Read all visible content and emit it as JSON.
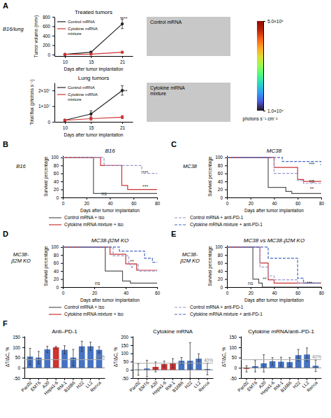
{
  "chart_data": [
    {
      "type": "line",
      "title": "Treated tumors",
      "subtitle": "B16/lung",
      "annotations": [
        {
          "text": "A"
        },
        {
          "text": "****",
          "x": 22,
          "y": 720
        }
      ],
      "xlabel": "Days after tumor implantation",
      "ylabel": "Tumor volume (mm³)",
      "x": [
        10,
        15,
        21
      ],
      "xlim": [
        8,
        23
      ],
      "xticks": [
        10,
        15,
        21
      ],
      "ylim": [
        -30,
        800
      ],
      "yticks": [
        0,
        200,
        400,
        600,
        800
      ],
      "marker": "circle",
      "legend": "upper left",
      "series": [
        {
          "name": "Control mRNA",
          "color": "#222222",
          "values": [
            5,
            50,
            650
          ],
          "errors": [
            2,
            20,
            100
          ]
        },
        {
          "name": "Cytokine mRNA\nmixture",
          "color": "#cc3333",
          "values": [
            5,
            10,
            50
          ],
          "errors": [
            2,
            4,
            20
          ]
        }
      ]
    },
    {
      "type": "line",
      "title": "Lung tumors",
      "annotations": [
        {
          "text": "***",
          "x": 22,
          "y": 18500000
        }
      ],
      "xlabel": "Days after tumor implantation",
      "ylabel": "Total flux (photons s⁻¹)",
      "x": [
        10,
        15,
        21
      ],
      "xlim": [
        8,
        23
      ],
      "xticks": [
        10,
        15,
        21
      ],
      "ylim": [
        0,
        25000000
      ],
      "yticks": [
        0,
        {
          "value": 10000000,
          "label": "1×10⁷"
        },
        {
          "value": 20000000,
          "label": "2×10⁷"
        }
      ],
      "marker": "circle",
      "legend": "upper left",
      "series": [
        {
          "name": "Control mRNA",
          "color": "#222222",
          "values": [
            1000000,
            5000000,
            20000000
          ],
          "errors": [
            500000,
            2000000,
            3000000
          ]
        },
        {
          "name": "Cytokine mRNA\nmixture",
          "color": "#cc3333",
          "values": [
            1000000,
            2000000,
            3000000
          ],
          "errors": [
            500000,
            1000000,
            1000000
          ]
        }
      ]
    },
    {
      "type": "image",
      "title": "Control mRNA"
    },
    {
      "type": "image",
      "title": "Cytokine mRNA\nmixture"
    },
    {
      "type": "colorbar",
      "log": true,
      "ylabel": "photons s⁻¹ cm⁻²",
      "ylim": [
        10000,
        500000
      ],
      "yticks": [
        {
          "value": 10000,
          "label": "1.0×10⁴"
        },
        {
          "value": 500000,
          "label": "5.0×10⁵"
        }
      ]
    },
    {
      "type": "step",
      "title": "B16",
      "subtitle": "B16",
      "annotations": [
        {
          "text": "B"
        },
        {
          "text": "***",
          "x": 70,
          "y": 58
        },
        {
          "text": "***",
          "x": 70,
          "y": 23
        },
        {
          "text": "ns",
          "x": 35,
          "y": 5
        }
      ],
      "xlabel": "Days after tumor implantation",
      "ylabel": "Survival percentage",
      "xlim": [
        0,
        80
      ],
      "xticks": [
        0,
        20,
        40,
        60,
        80
      ],
      "ylim": [
        0,
        105
      ],
      "yticks": [
        0,
        20,
        40,
        60,
        80,
        100
      ],
      "series": [
        {
          "color": "#555555",
          "line_style": "solid",
          "x": [
            0,
            25,
            26,
            80
          ],
          "values": [
            100,
            100,
            10,
            10
          ]
        },
        {
          "color": "#cc3333",
          "line_style": "solid",
          "x": [
            0,
            27,
            32,
            50,
            55,
            80
          ],
          "values": [
            100,
            100,
            80,
            30,
            20,
            20
          ]
        },
        {
          "color": "#9999cc",
          "line_style": "dashed",
          "x": [
            0,
            30,
            35,
            62,
            67,
            80
          ],
          "values": [
            100,
            100,
            80,
            80,
            60,
            60
          ]
        }
      ]
    },
    {
      "type": "step",
      "title": "MC38",
      "subtitle": "MC38",
      "annotations": [
        {
          "text": "C"
        },
        {
          "text": "***",
          "x": 72,
          "y": 78
        },
        {
          "text": "ns",
          "x": 72,
          "y": 36
        },
        {
          "text": "**",
          "x": 72,
          "y": 18
        }
      ],
      "xlabel": "Days after tumor implantation",
      "ylabel": "Survival percentage",
      "xlim": [
        0,
        80
      ],
      "xticks": [
        0,
        20,
        40,
        60,
        80
      ],
      "ylim": [
        0,
        105
      ],
      "yticks": [
        0,
        20,
        40,
        60,
        80,
        100
      ],
      "series": [
        {
          "color": "#555555",
          "line_style": "solid",
          "x": [
            0,
            30,
            35,
            50,
            55,
            80
          ],
          "values": [
            100,
            100,
            25,
            15,
            10,
            10
          ]
        },
        {
          "color": "#cc3333",
          "line_style": "solid",
          "x": [
            0,
            35,
            40,
            60,
            65,
            80
          ],
          "values": [
            100,
            100,
            75,
            45,
            40,
            40
          ]
        },
        {
          "color": "#9999cc",
          "line_style": "dashed",
          "x": [
            0,
            35,
            40,
            60,
            65,
            80
          ],
          "values": [
            100,
            100,
            60,
            42,
            35,
            35
          ]
        },
        {
          "color": "#4466bb",
          "line_style": "dashed",
          "x": [
            0,
            42,
            47,
            75,
            80
          ],
          "values": [
            100,
            100,
            90,
            90,
            80
          ]
        }
      ]
    },
    {
      "type": "legend",
      "series": [
        {
          "name": "Control mRNA + iso",
          "color": "#555555",
          "line_style": "solid"
        },
        {
          "name": "Cytokine mRNA mixture + iso",
          "color": "#cc3333",
          "line_style": "solid"
        },
        {
          "name": "Control mRNA + anti-PD-1",
          "color": "#9999cc",
          "line_style": "dashed"
        },
        {
          "name": "Cytokine mRNA mixture + anti-PD-1",
          "color": "#4466bb",
          "line_style": "dashed"
        }
      ]
    },
    {
      "type": "step",
      "title": "MC38-β2M KO",
      "subtitle": "MC38-\nβ2M KO",
      "annotations": [
        {
          "text": "D"
        },
        {
          "text": "**",
          "x": 44,
          "y": 60
        },
        {
          "text": "*",
          "x": 44,
          "y": 43
        },
        {
          "text": "ns",
          "x": 22,
          "y": 5
        }
      ],
      "xlabel": "Days after tumor implantation",
      "ylabel": "Survival percentage",
      "xlim": [
        0,
        60
      ],
      "xticks": [
        0,
        20,
        40,
        60
      ],
      "ylim": [
        0,
        105
      ],
      "yticks": [
        0,
        20,
        40,
        60,
        80,
        100
      ],
      "series": [
        {
          "color": "#555555",
          "line_style": "solid",
          "x": [
            0,
            22,
            27,
            38,
            43,
            60
          ],
          "values": [
            100,
            100,
            40,
            15,
            10,
            10
          ]
        },
        {
          "color": "#cc3333",
          "line_style": "solid",
          "x": [
            0,
            24,
            30,
            40,
            47,
            60
          ],
          "values": [
            100,
            100,
            82,
            58,
            42,
            42
          ]
        },
        {
          "color": "#9999cc",
          "line_style": "dashed",
          "x": [
            0,
            26,
            32,
            42,
            48,
            60
          ],
          "values": [
            100,
            100,
            78,
            56,
            40,
            40
          ]
        },
        {
          "color": "#4466bb",
          "line_style": "dashed",
          "x": [
            0,
            30,
            36,
            52,
            57,
            60
          ],
          "values": [
            100,
            100,
            90,
            72,
            62,
            62
          ]
        }
      ]
    },
    {
      "type": "step",
      "title": "MC38 vs MC38-β2M KO",
      "subtitle": "MC38-\nβ2M KO",
      "annotations": [
        {
          "text": "E"
        },
        {
          "text": "ns",
          "x": 20,
          "y": 5
        },
        {
          "text": "**",
          "x": 32,
          "y": 15
        },
        {
          "text": "***",
          "x": 70,
          "y": 5
        }
      ],
      "xlabel": "Days after tumor implantation",
      "ylabel": "Survival percentage",
      "xlim": [
        0,
        80
      ],
      "xticks": [
        0,
        20,
        40,
        60,
        80
      ],
      "ylim": [
        0,
        105
      ],
      "yticks": [
        0,
        20,
        40,
        60,
        80,
        100
      ],
      "series": [
        {
          "color": "#555555",
          "line_style": "solid",
          "x": [
            0,
            20,
            22,
            27,
            30,
            80
          ],
          "values": [
            100,
            100,
            20,
            10,
            0,
            0
          ]
        },
        {
          "color": "#cc3333",
          "line_style": "solid",
          "x": [
            0,
            22,
            28,
            35,
            40,
            80
          ],
          "values": [
            100,
            100,
            60,
            18,
            10,
            10
          ]
        },
        {
          "color": "#9999cc",
          "line_style": "dashed",
          "x": [
            0,
            22,
            28,
            35,
            40,
            60,
            65,
            80
          ],
          "values": [
            100,
            100,
            50,
            28,
            18,
            10,
            10,
            10
          ]
        },
        {
          "color": "#4466bb",
          "line_style": "dashed",
          "x": [
            0,
            30,
            35,
            60,
            65,
            80
          ],
          "values": [
            100,
            100,
            72,
            22,
            10,
            10
          ]
        }
      ]
    },
    {
      "type": "legend",
      "series": [
        {
          "name": "Control mRNA + iso",
          "color": "#555555",
          "line_style": "solid"
        },
        {
          "name": "Cytokine mRNA mixture + iso",
          "color": "#cc3333",
          "line_style": "solid"
        },
        {
          "name": "Control mRNA + anti-PD-1",
          "color": "#9999cc",
          "line_style": "dashed"
        },
        {
          "name": "Cytokine mRNA mixture + anti-PD-1",
          "color": "#4466bb",
          "line_style": "dashed"
        }
      ]
    },
    {
      "type": "bar",
      "title": "Anti–PD-1",
      "ylabel": "ΔT/ΔC, %",
      "annotations": [
        {
          "text": "F"
        },
        {
          "text": "40%",
          "y": 40,
          "color": "#aaaaaa"
        }
      ],
      "categories": [
        "Pan02",
        "EMT6",
        "A20",
        "Hepa1-6",
        "RM-1",
        "B16B6",
        "H22",
        "LL2",
        "Renca"
      ],
      "values": [
        55,
        50,
        90,
        100,
        88,
        50,
        105,
        105,
        88
      ],
      "errors": [
        40,
        30,
        15,
        5,
        20,
        40,
        25,
        20,
        15
      ],
      "colors": [
        "#4472c4",
        "#4472c4",
        "#4472c4",
        "#cc3333",
        "#4472c4",
        "#4472c4",
        "#4472c4",
        "#4472c4",
        "#4472c4"
      ],
      "ylim": [
        -50,
        155
      ],
      "yticks": [
        -50,
        0,
        50,
        100,
        150
      ]
    },
    {
      "type": "bar",
      "title": "Cytokine mRNA",
      "ylabel": "ΔT/ΔC, %",
      "annotations": [
        {
          "text": "40%",
          "y": 40,
          "color": "#aaaaaa"
        }
      ],
      "categories": [
        "Pan02",
        "EMT6",
        "A20",
        "Hepa1-6",
        "RM-1",
        "B16B6",
        "H22",
        "LL2",
        "Renca"
      ],
      "values": [
        2,
        8,
        18,
        35,
        40,
        55,
        55,
        68,
        5
      ],
      "errors": [
        35,
        50,
        30,
        18,
        28,
        20,
        110,
        30,
        35
      ],
      "colors": [
        "#4472c4",
        "#4472c4",
        "#cc3333",
        "#cc3333",
        "#cc3333",
        "#4472c4",
        "#4472c4",
        "#4472c4",
        "#4472c4"
      ],
      "ylim": [
        -50,
        205
      ],
      "yticks": [
        -50,
        0,
        50,
        100,
        150,
        200
      ]
    },
    {
      "type": "bar",
      "title": "Cytokine mRNA/anti–PD-1",
      "ylabel": "ΔT/ΔC, %",
      "annotations": [
        {
          "text": "40%",
          "y": 40,
          "color": "#aaaaaa"
        }
      ],
      "categories": [
        "Pan02",
        "EMT6",
        "A20",
        "Hepa1-6",
        "RM-1",
        "B16B6",
        "H22",
        "LL2",
        "Renca"
      ],
      "values": [
        -5,
        8,
        22,
        32,
        30,
        28,
        62,
        65,
        10
      ],
      "errors": [
        15,
        28,
        42,
        18,
        22,
        22,
        28,
        32,
        28
      ],
      "colors": [
        "#cc3333",
        "#4472c4",
        "#4472c4",
        "#4472c4",
        "#4472c4",
        "#4472c4",
        "#4472c4",
        "#4472c4",
        "#4472c4"
      ],
      "ylim": [
        -50,
        155
      ],
      "yticks": [
        -50,
        0,
        50,
        100,
        150
      ]
    }
  ]
}
